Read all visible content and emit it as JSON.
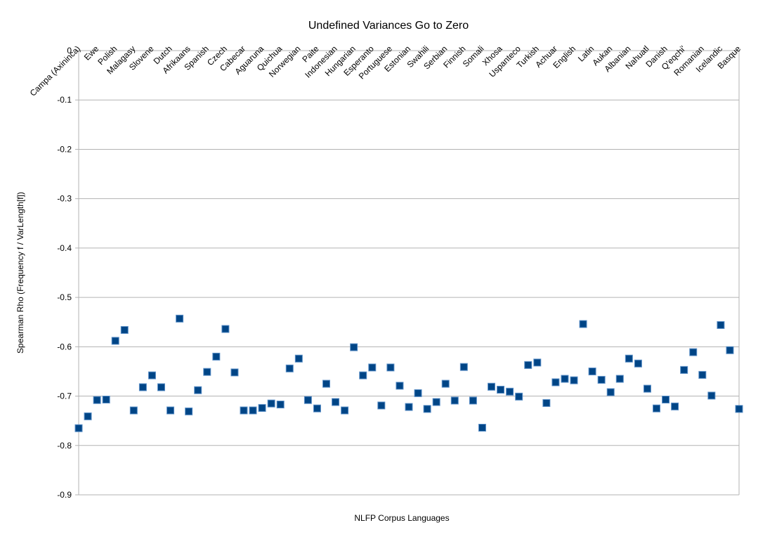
{
  "chart_data": {
    "type": "scatter",
    "title": "Undefined Variances Go to Zero",
    "x_label": "NLFP Corpus Languages",
    "y_label": "Spearman Rho (Frequency f / VarLength[f])",
    "categories": [
      "Campa (Axininca)",
      null,
      "Ewe",
      null,
      "Polish",
      null,
      "Malagasy",
      null,
      "Slovene",
      null,
      "Dutch",
      null,
      "Afrikaans",
      null,
      "Spanish",
      null,
      "Czech",
      null,
      "Cabecar",
      null,
      "Aguaruna",
      null,
      "Quichua",
      null,
      "Norwegian",
      null,
      "Paite",
      null,
      "Indonesian",
      null,
      "Hungarian",
      null,
      "Esperanto",
      null,
      "Portuguese",
      null,
      "Estonian",
      null,
      "Swahili",
      null,
      "Serbian",
      null,
      "Finnish",
      null,
      "Somali",
      null,
      "Xhosa",
      null,
      "Uspanteco",
      null,
      "Turkish",
      null,
      "Achuar",
      null,
      "English",
      null,
      "Latin",
      null,
      "Aukan",
      null,
      "Albanian",
      null,
      "Nahuatl",
      null,
      "Danish",
      null,
      "Q'eqchi'",
      null,
      "Romanian",
      null,
      "Icelandic",
      null,
      "Basque"
    ],
    "values": [
      -0.765,
      -0.741,
      -0.708,
      -0.707,
      -0.588,
      -0.566,
      -0.729,
      -0.682,
      -0.658,
      -0.682,
      -0.729,
      -0.543,
      -0.731,
      -0.688,
      -0.651,
      -0.62,
      -0.564,
      -0.652,
      -0.729,
      -0.729,
      -0.724,
      -0.715,
      -0.717,
      -0.644,
      -0.624,
      -0.708,
      -0.725,
      -0.675,
      -0.712,
      -0.729,
      -0.601,
      -0.658,
      -0.642,
      -0.719,
      -0.642,
      -0.679,
      -0.722,
      -0.694,
      -0.726,
      -0.712,
      -0.675,
      -0.709,
      -0.641,
      -0.709,
      -0.764,
      -0.681,
      -0.687,
      -0.691,
      -0.701,
      -0.637,
      -0.632,
      -0.714,
      -0.672,
      -0.665,
      -0.668,
      -0.554,
      -0.65,
      -0.667,
      -0.692,
      -0.665,
      -0.624,
      -0.634,
      -0.685,
      -0.725,
      -0.707,
      -0.721,
      -0.647,
      -0.611,
      -0.657,
      -0.699,
      -0.556,
      -0.607,
      -0.726
    ],
    "color": "#004586",
    "ylim": [
      -0.9,
      0
    ],
    "yticks": [
      0,
      -0.1,
      -0.2,
      -0.3,
      -0.4,
      -0.5,
      -0.6,
      -0.7,
      -0.8,
      -0.9
    ],
    "grid": true
  }
}
